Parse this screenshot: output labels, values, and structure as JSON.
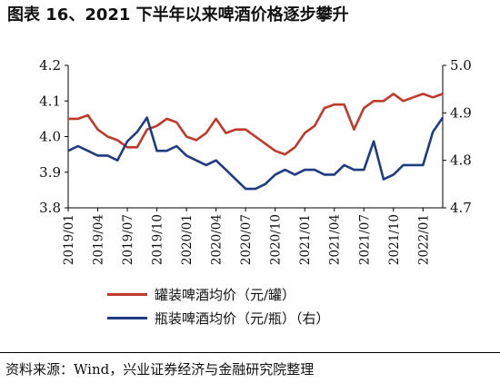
{
  "title": "图表 16、2021 下半年以来啤酒价格逐步攀升",
  "source": "资料来源：Wind，兴业证券经济与金融研究院整理",
  "chart_data": {
    "type": "line",
    "x_tick_labels": [
      "2019/01",
      "2019/04",
      "2019/07",
      "2019/10",
      "2020/01",
      "2020/04",
      "2020/07",
      "2020/10",
      "2021/01",
      "2021/04",
      "2021/07",
      "2021/10",
      "2022/01"
    ],
    "y_left": {
      "lim": [
        3.8,
        4.2
      ],
      "ticks": [
        "3.8",
        "3.9",
        "4.0",
        "4.1",
        "4.2"
      ]
    },
    "y_right": {
      "lim": [
        4.7,
        5.0
      ],
      "ticks": [
        "4.7",
        "4.8",
        "4.9",
        "5.0"
      ]
    },
    "grid": false,
    "legend_position": "bottom",
    "series": [
      {
        "name": "罐装啤酒均价（元/罐）",
        "axis": "left",
        "color": "#c0392b",
        "values": [
          4.05,
          4.05,
          4.06,
          4.02,
          4.0,
          3.99,
          3.97,
          3.97,
          4.02,
          4.03,
          4.05,
          4.04,
          4.0,
          3.99,
          4.01,
          4.05,
          4.01,
          4.02,
          4.02,
          4.0,
          3.98,
          3.96,
          3.95,
          3.97,
          4.01,
          4.03,
          4.08,
          4.09,
          4.09,
          4.02,
          4.08,
          4.1,
          4.1,
          4.12,
          4.1,
          4.11,
          4.12,
          4.11,
          4.12
        ]
      },
      {
        "name": "瓶装啤酒均价（元/瓶）（右）",
        "axis": "right",
        "color": "#1f3b82",
        "values": [
          4.82,
          4.83,
          4.82,
          4.81,
          4.81,
          4.8,
          4.84,
          4.86,
          4.89,
          4.82,
          4.82,
          4.83,
          4.81,
          4.8,
          4.79,
          4.8,
          4.78,
          4.76,
          4.74,
          4.74,
          4.75,
          4.77,
          4.78,
          4.77,
          4.78,
          4.78,
          4.77,
          4.77,
          4.79,
          4.78,
          4.78,
          4.84,
          4.76,
          4.77,
          4.79,
          4.79,
          4.79,
          4.86,
          4.89
        ]
      }
    ]
  }
}
